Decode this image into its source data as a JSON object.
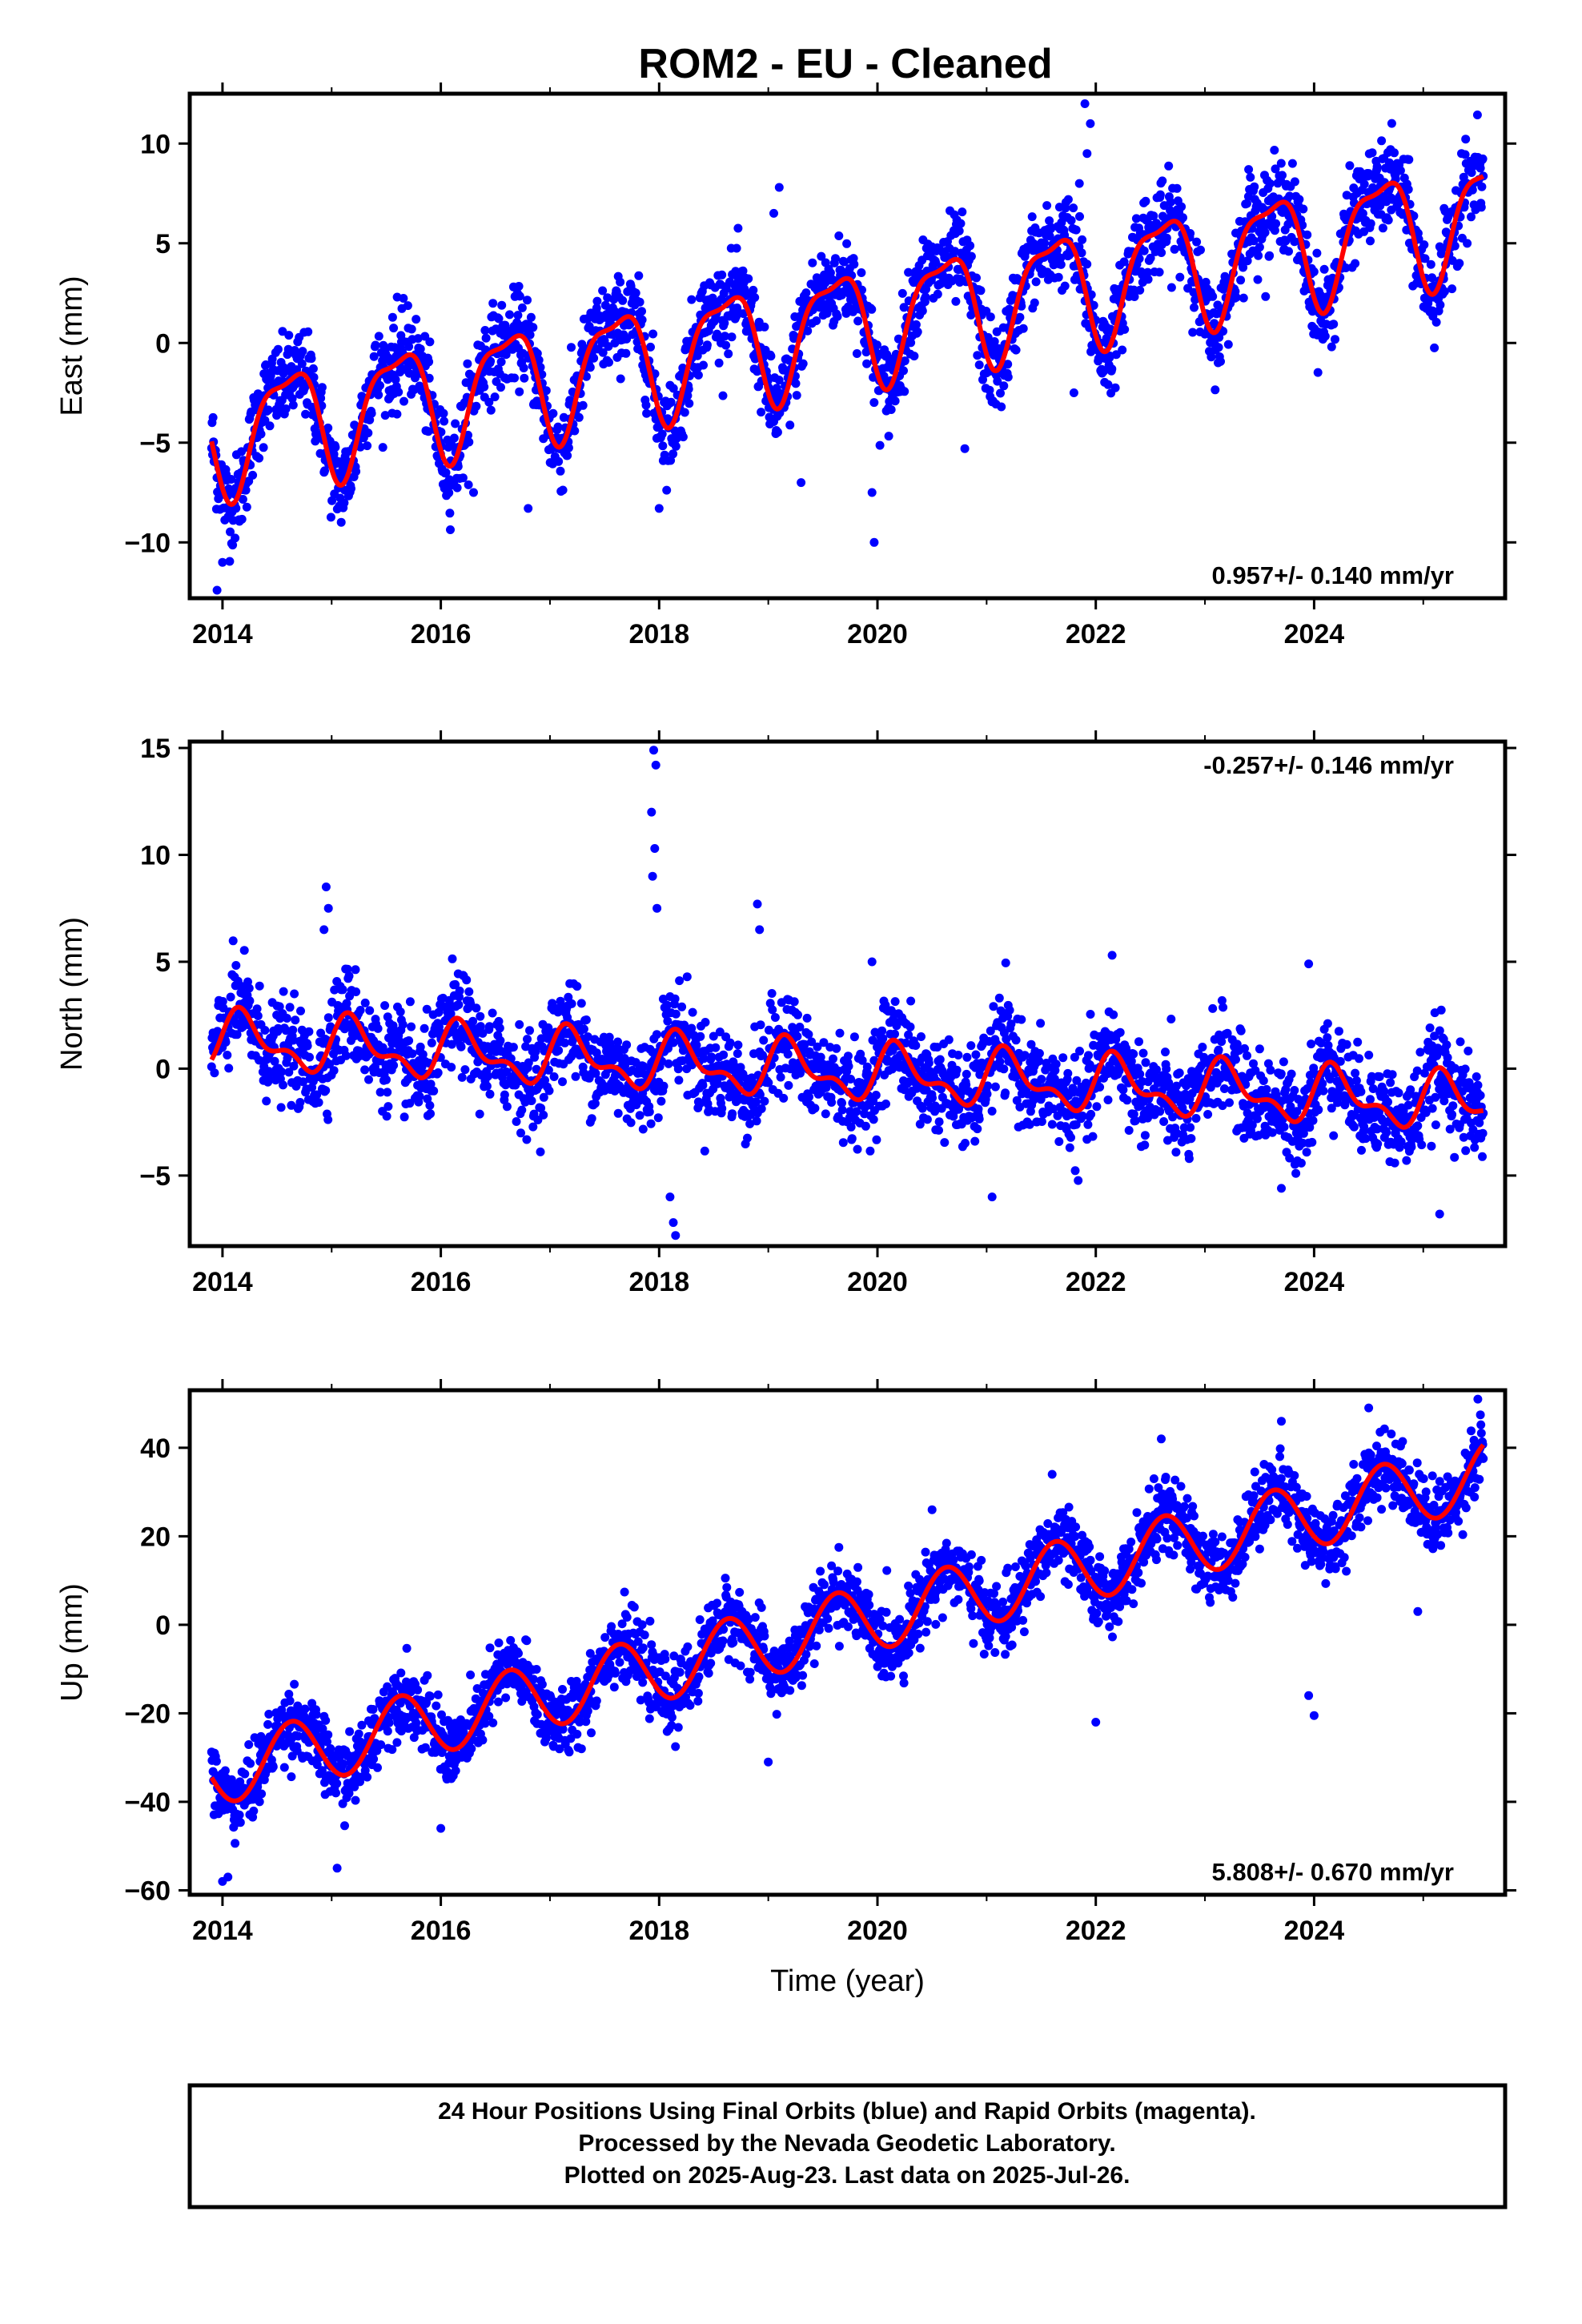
{
  "title": "ROM2  - EU - Cleaned",
  "footer": {
    "lines": [
      "24 Hour Positions Using Final Orbits (blue) and Rapid Orbits (magenta).",
      "Processed by the Nevada Geodetic Laboratory.",
      "Plotted on 2025-Aug-23. Last data on 2025-Jul-26."
    ]
  },
  "colors": {
    "points": "#0000ff",
    "model": "#ff0000",
    "axes": "#000000"
  },
  "chart_data": [
    {
      "type": "scatter",
      "name": "east-panel",
      "ylabel": "East (mm)",
      "xlabel": "",
      "xlim": [
        2013.7,
        2025.75
      ],
      "ylim": [
        -12.8,
        12.5
      ],
      "xticks": [
        2014,
        2016,
        2018,
        2020,
        2022,
        2024
      ],
      "yticks": [
        -10,
        -5,
        0,
        5,
        10
      ],
      "rate_label": "0.957+/- 0.140 mm/yr",
      "rate_position": "bottom-right",
      "model": {
        "start": 2013.9,
        "end": 2025.55,
        "offset": -4.5,
        "trend": 0.957,
        "annual_amp": 2.8,
        "annual_phase": 0.35,
        "semiannual_amp": 0.9,
        "semiannual_phase": 0.2,
        "t0": 2014.0
      },
      "noise_sd": 1.1,
      "outliers": [
        {
          "x": 2013.95,
          "y": -12.4
        },
        {
          "x": 2014.0,
          "y": -11.0
        },
        {
          "x": 2015.6,
          "y": 2.3
        },
        {
          "x": 2019.1,
          "y": 7.8
        },
        {
          "x": 2019.05,
          "y": 6.5
        },
        {
          "x": 2019.3,
          "y": -7.0
        },
        {
          "x": 2019.95,
          "y": -7.5
        },
        {
          "x": 2019.97,
          "y": -10.0
        },
        {
          "x": 2018.0,
          "y": -8.3
        },
        {
          "x": 2021.9,
          "y": 12.0
        },
        {
          "x": 2021.95,
          "y": 11.0
        },
        {
          "x": 2021.85,
          "y": 8.0
        },
        {
          "x": 2021.92,
          "y": 9.5
        },
        {
          "x": 2021.8,
          "y": -2.5
        },
        {
          "x": 2023.4,
          "y": 8.7
        },
        {
          "x": 2024.7,
          "y": 9.7
        },
        {
          "x": 2025.35,
          "y": 9.5
        },
        {
          "x": 2020.8,
          "y": -5.3
        },
        {
          "x": 2016.8,
          "y": -8.3
        },
        {
          "x": 2016.3,
          "y": -7.5
        }
      ]
    },
    {
      "type": "scatter",
      "name": "north-panel",
      "ylabel": "North (mm)",
      "xlabel": "",
      "xlim": [
        2013.7,
        2025.75
      ],
      "ylim": [
        -8.3,
        15.3
      ],
      "xticks": [
        2014,
        2016,
        2018,
        2020,
        2022,
        2024
      ],
      "yticks": [
        -5,
        0,
        5,
        10,
        15
      ],
      "rate_label": "-0.257+/- 0.146 mm/yr",
      "rate_position": "top-right",
      "model": {
        "start": 2013.9,
        "end": 2025.55,
        "offset": 1.3,
        "trend": -0.257,
        "annual_amp": 1.1,
        "annual_phase": 0.95,
        "semiannual_amp": 0.6,
        "semiannual_phase": 0.5,
        "t0": 2014.0
      },
      "noise_sd": 1.1,
      "outliers": [
        {
          "x": 2014.95,
          "y": 8.5
        },
        {
          "x": 2014.97,
          "y": 7.5
        },
        {
          "x": 2014.93,
          "y": 6.5
        },
        {
          "x": 2017.95,
          "y": 14.9
        },
        {
          "x": 2017.97,
          "y": 14.2
        },
        {
          "x": 2017.93,
          "y": 12.0
        },
        {
          "x": 2017.96,
          "y": 10.3
        },
        {
          "x": 2017.94,
          "y": 9.0
        },
        {
          "x": 2017.98,
          "y": 7.5
        },
        {
          "x": 2018.15,
          "y": -7.8
        },
        {
          "x": 2018.13,
          "y": -7.2
        },
        {
          "x": 2018.1,
          "y": -6.0
        },
        {
          "x": 2018.9,
          "y": 7.7
        },
        {
          "x": 2018.92,
          "y": 6.5
        },
        {
          "x": 2021.05,
          "y": -6.0
        },
        {
          "x": 2025.15,
          "y": -6.8
        },
        {
          "x": 2023.7,
          "y": -5.6
        },
        {
          "x": 2022.15,
          "y": 5.3
        },
        {
          "x": 2023.95,
          "y": 4.9
        },
        {
          "x": 2019.95,
          "y": 5.0
        }
      ]
    },
    {
      "type": "scatter",
      "name": "up-panel",
      "ylabel": "Up (mm)",
      "xlabel": "Time (year)",
      "xlim": [
        2013.7,
        2025.75
      ],
      "ylim": [
        -61,
        53
      ],
      "xticks": [
        2014,
        2016,
        2018,
        2020,
        2022,
        2024
      ],
      "yticks": [
        -60,
        -40,
        -20,
        0,
        20,
        40
      ],
      "rate_label": "5.808+/- 0.670 mm/yr",
      "rate_position": "bottom-right",
      "model": {
        "start": 2013.9,
        "end": 2025.55,
        "offset": -33.0,
        "trend": 5.808,
        "annual_amp": 7.5,
        "annual_phase": 0.38,
        "semiannual_amp": 0.0,
        "semiannual_phase": 0.0,
        "t0": 2014.0
      },
      "noise_sd": 4.0,
      "outliers": [
        {
          "x": 2014.0,
          "y": -58.0
        },
        {
          "x": 2014.05,
          "y": -57.0
        },
        {
          "x": 2015.05,
          "y": -55.0
        },
        {
          "x": 2016.0,
          "y": -46.0
        },
        {
          "x": 2019.0,
          "y": -31.0
        },
        {
          "x": 2022.0,
          "y": -22.0
        },
        {
          "x": 2024.0,
          "y": -20.5
        },
        {
          "x": 2023.95,
          "y": -16.0
        },
        {
          "x": 2025.5,
          "y": 51.0
        },
        {
          "x": 2024.5,
          "y": 49.0
        },
        {
          "x": 2023.7,
          "y": 46.0
        },
        {
          "x": 2024.95,
          "y": 3.0
        },
        {
          "x": 2022.6,
          "y": 42.0
        },
        {
          "x": 2021.6,
          "y": 34.0
        },
        {
          "x": 2020.5,
          "y": 26.0
        }
      ]
    }
  ]
}
